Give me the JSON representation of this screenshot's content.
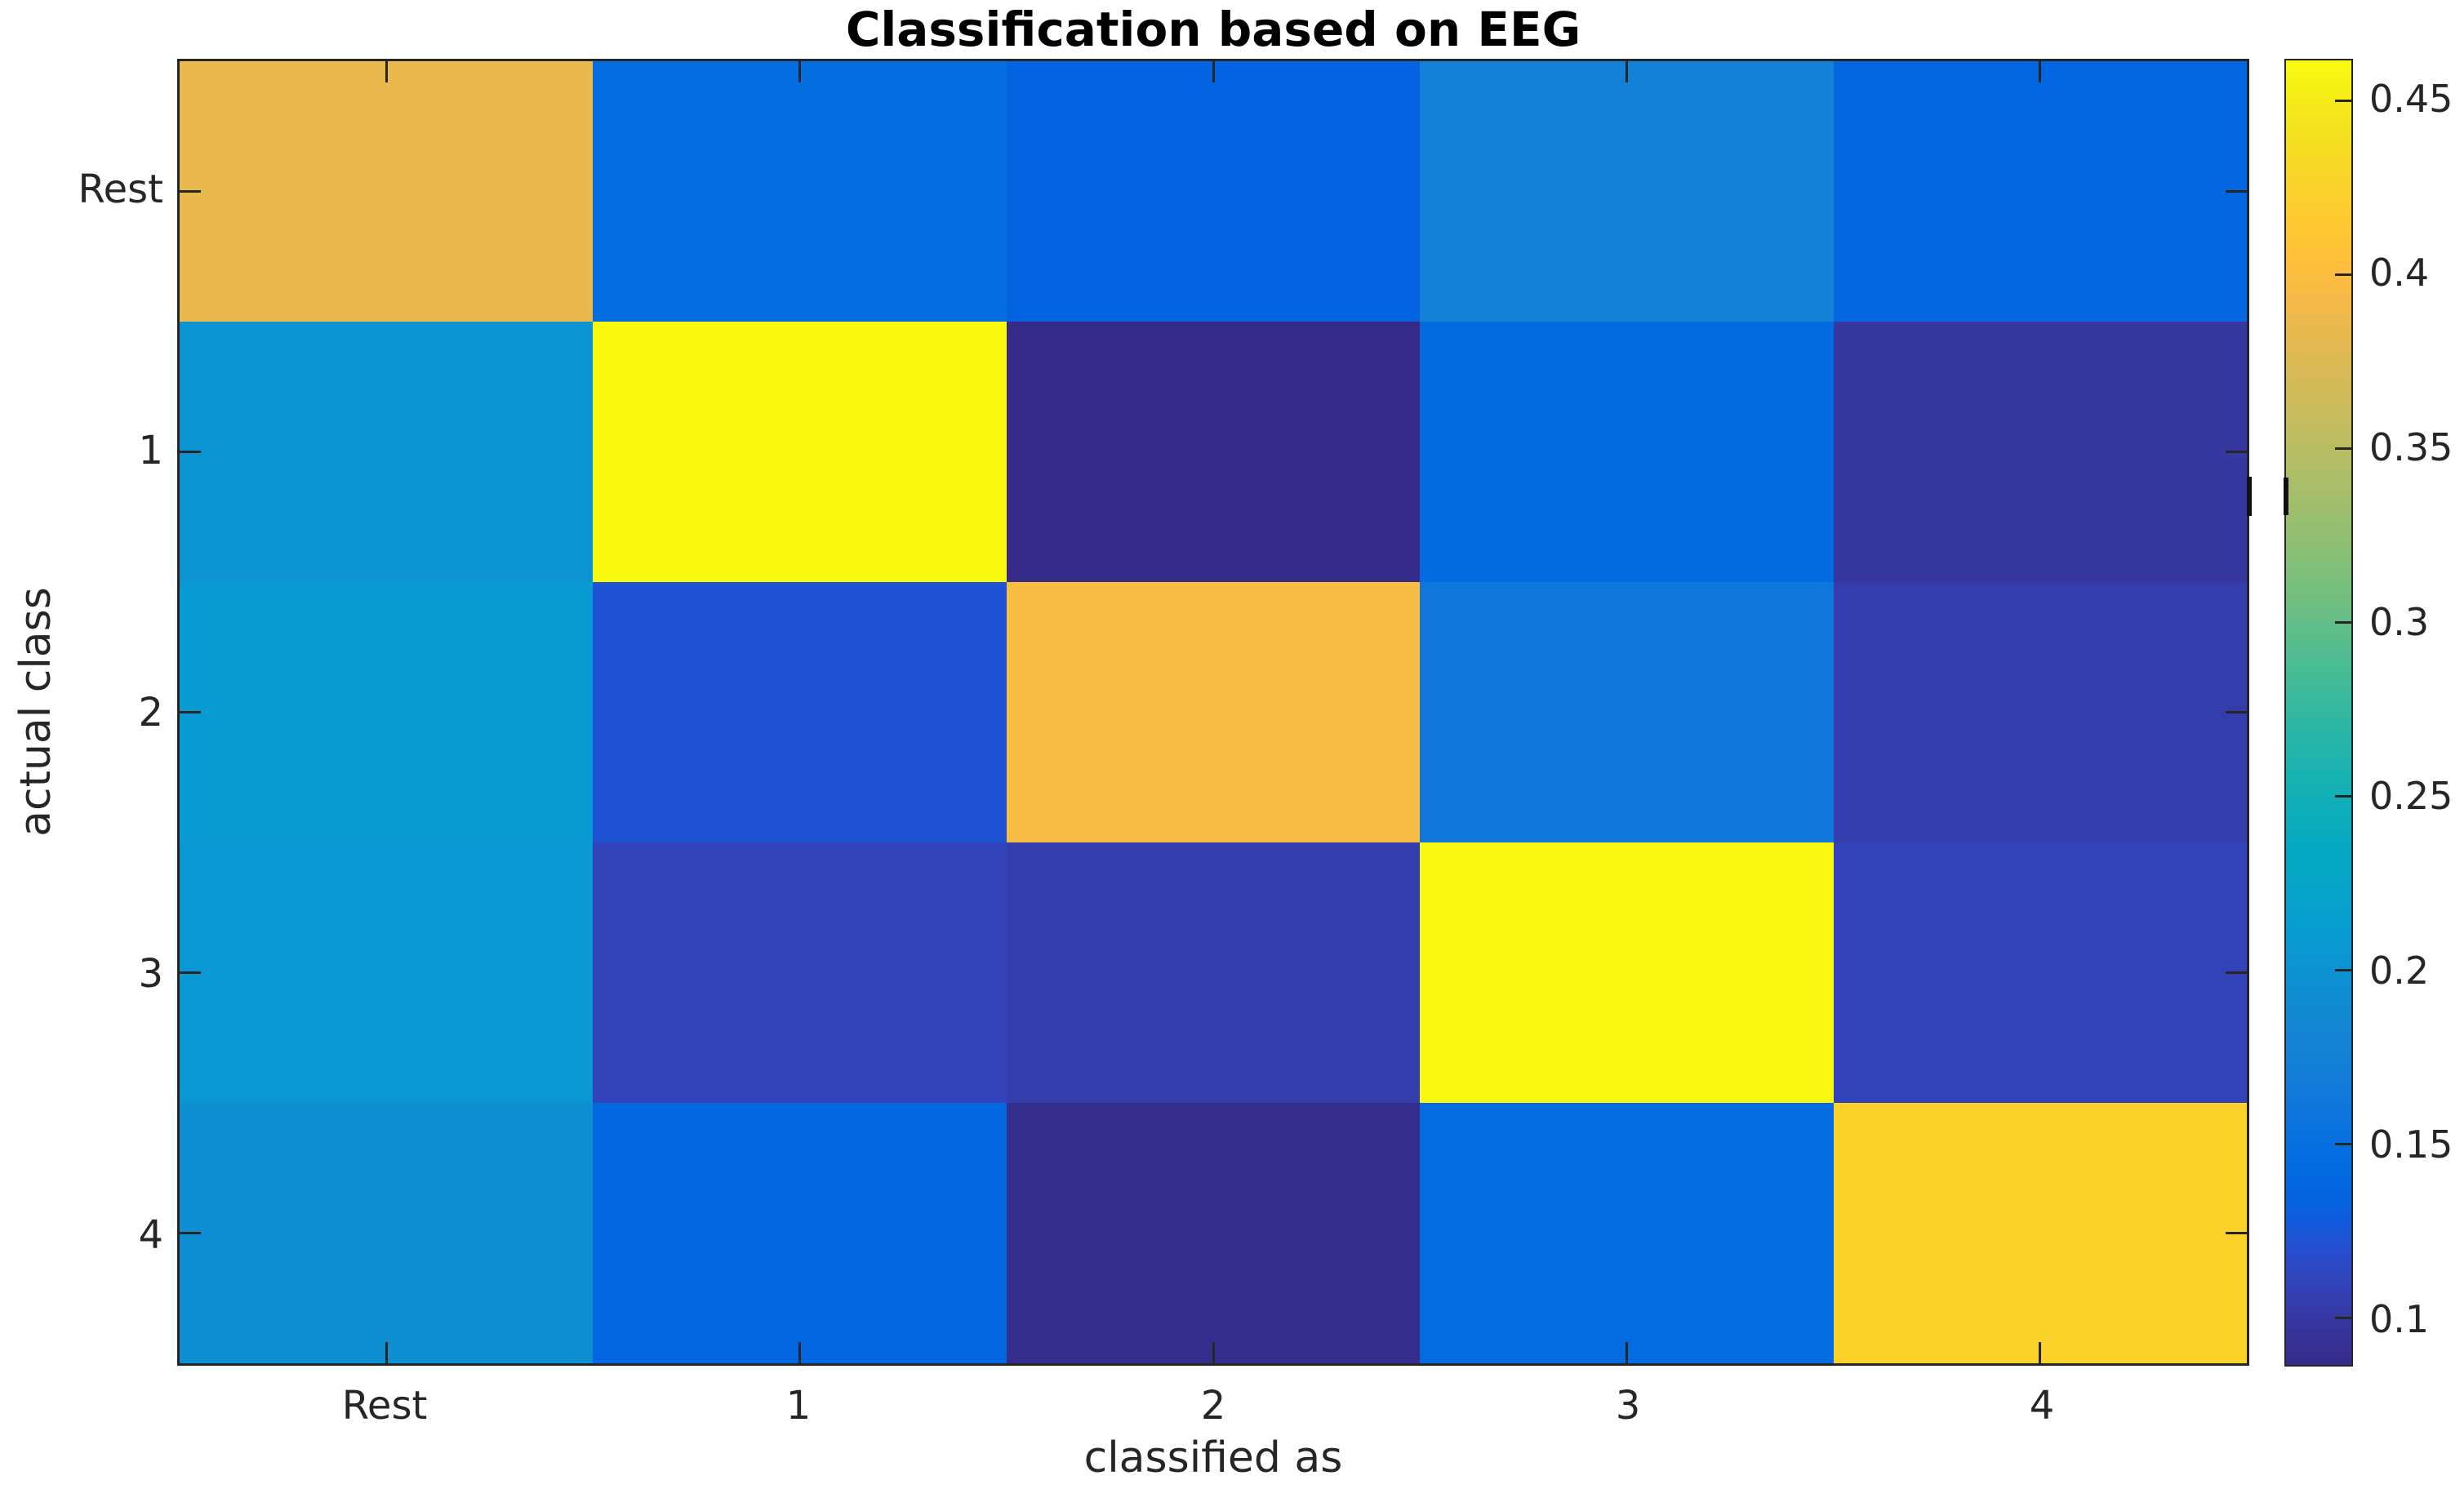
{
  "figure": {
    "background": "#ffffff"
  },
  "chart_data": {
    "type": "heatmap",
    "title": "Classification based on EEG",
    "xlabel": "classified as",
    "ylabel": "actual class",
    "x_categories": [
      "Rest",
      "1",
      "2",
      "3",
      "4"
    ],
    "y_categories": [
      "Rest",
      "1",
      "2",
      "3",
      "4"
    ],
    "matrix": [
      [
        0.385,
        0.146,
        0.134,
        0.176,
        0.139
      ],
      [
        0.2,
        0.46,
        0.086,
        0.143,
        0.098
      ],
      [
        0.208,
        0.122,
        0.396,
        0.161,
        0.104
      ],
      [
        0.205,
        0.11,
        0.104,
        0.459,
        0.11
      ],
      [
        0.193,
        0.139,
        0.089,
        0.145,
        0.425
      ]
    ],
    "colormap": "parula",
    "color_axis": [
      0.0864,
      0.4614
    ],
    "colorbar_ticks": [
      0.45,
      0.4,
      0.35,
      0.3,
      0.25,
      0.2,
      0.15,
      0.1
    ],
    "colorbar_position": "right",
    "grid": false,
    "tick_direction": "in",
    "box": true
  },
  "colors": {
    "axis_and_text": "#262626",
    "title_text": "#000000",
    "background": "#ffffff",
    "colormap_min": "#352a87",
    "colormap_max": "#f9fb0e"
  }
}
